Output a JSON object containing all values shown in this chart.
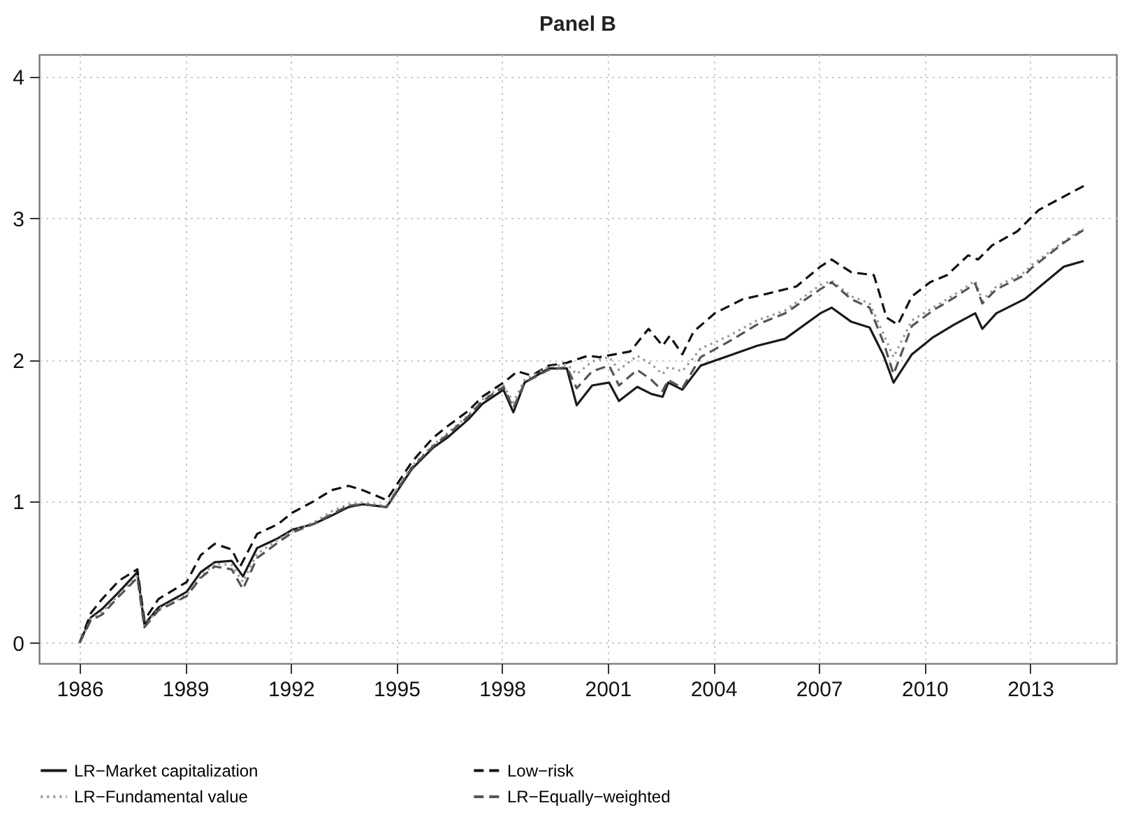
{
  "chart_data": {
    "type": "line",
    "title": "Panel B",
    "xlim": [
      1984.85,
      2015.45
    ],
    "xticks": [
      1986,
      1989,
      1992,
      1995,
      1998,
      2001,
      2004,
      2007,
      2010,
      2013
    ],
    "ylim": [
      -0.145,
      4.16
    ],
    "yticks": [
      0,
      1,
      2,
      3,
      4
    ],
    "grid": true,
    "legend": "bottom",
    "marker": "none",
    "x": [
      1986.0,
      1986.32,
      1986.64,
      1987.12,
      1987.64,
      1987.84,
      1988.24,
      1989.04,
      1989.44,
      1989.84,
      1990.32,
      1990.64,
      1991.04,
      1991.64,
      1992.04,
      1992.64,
      1993.16,
      1993.64,
      1994.04,
      1994.72,
      1995.04,
      1995.44,
      1996.04,
      1996.44,
      1997.04,
      1997.44,
      1998.04,
      1998.32,
      1998.64,
      1999.32,
      1999.84,
      2000.12,
      2000.56,
      2001.04,
      2001.32,
      2001.84,
      2002.24,
      2002.56,
      2002.72,
      2003.12,
      2003.64,
      2004.44,
      2005.24,
      2006.04,
      2007.04,
      2007.36,
      2007.92,
      2008.44,
      2008.84,
      2009.12,
      2009.64,
      2010.24,
      2010.84,
      2011.44,
      2011.64,
      2012.04,
      2012.84,
      2013.04,
      2013.96,
      2014.52
    ],
    "series": [
      {
        "name": "LR−Market capitalization",
        "color": "#1a1a1a",
        "line_style": "solid",
        "values": [
          0,
          0.18,
          0.24,
          0.36,
          0.5,
          0.13,
          0.25,
          0.36,
          0.5,
          0.57,
          0.58,
          0.47,
          0.67,
          0.74,
          0.8,
          0.84,
          0.9,
          0.96,
          0.98,
          0.96,
          1.08,
          1.23,
          1.38,
          1.45,
          1.58,
          1.69,
          1.79,
          1.63,
          1.84,
          1.94,
          1.94,
          1.68,
          1.82,
          1.84,
          1.71,
          1.81,
          1.76,
          1.74,
          1.84,
          1.79,
          1.96,
          2.03,
          2.1,
          2.15,
          2.33,
          2.37,
          2.27,
          2.23,
          2.03,
          1.84,
          2.04,
          2.16,
          2.25,
          2.33,
          2.22,
          2.33,
          2.43,
          2.47,
          2.66,
          2.7
        ]
      },
      {
        "name": "Low−risk",
        "color": "#111111",
        "line_style": "dashed",
        "x": [
          1986.0,
          1986.32,
          1986.64,
          1987.12,
          1987.64,
          1987.84,
          1988.24,
          1989.04,
          1989.44,
          1989.84,
          1990.32,
          1990.56,
          1991.04,
          1991.64,
          1992.04,
          1992.64,
          1993.16,
          1993.64,
          1994.04,
          1994.72,
          1995.04,
          1995.44,
          1996.04,
          1996.44,
          1997.04,
          1997.44,
          1998.04,
          1998.44,
          1998.84,
          1999.32,
          1999.84,
          2000.44,
          2000.76,
          2001.64,
          2002.16,
          2002.56,
          2002.76,
          2003.12,
          2003.44,
          2004.04,
          2004.84,
          2005.56,
          2006.36,
          2007.04,
          2007.36,
          2007.92,
          2008.56,
          2008.72,
          2008.92,
          2009.24,
          2009.64,
          2010.16,
          2010.64,
          2011.24,
          2011.52,
          2011.92,
          2012.64,
          2013.24,
          2013.84,
          2014.52
        ],
        "values": [
          0,
          0.21,
          0.31,
          0.44,
          0.52,
          0.16,
          0.31,
          0.43,
          0.62,
          0.7,
          0.66,
          0.54,
          0.77,
          0.84,
          0.92,
          1.0,
          1.08,
          1.11,
          1.08,
          1.01,
          1.13,
          1.28,
          1.45,
          1.53,
          1.64,
          1.74,
          1.84,
          1.92,
          1.89,
          1.96,
          1.98,
          2.03,
          2.02,
          2.06,
          2.22,
          2.1,
          2.17,
          2.04,
          2.2,
          2.33,
          2.43,
          2.47,
          2.52,
          2.66,
          2.71,
          2.62,
          2.6,
          2.47,
          2.3,
          2.25,
          2.45,
          2.55,
          2.6,
          2.74,
          2.71,
          2.81,
          2.91,
          3.06,
          3.14,
          3.23
        ]
      },
      {
        "name": "LR−Fundamental value",
        "color": "#999999",
        "line_style": "dotted",
        "values": [
          0,
          0.17,
          0.22,
          0.34,
          0.47,
          0.12,
          0.24,
          0.34,
          0.47,
          0.56,
          0.55,
          0.43,
          0.63,
          0.73,
          0.79,
          0.85,
          0.93,
          0.98,
          0.99,
          0.97,
          1.1,
          1.25,
          1.4,
          1.48,
          1.61,
          1.72,
          1.82,
          1.7,
          1.86,
          1.95,
          1.97,
          1.9,
          1.99,
          2.02,
          1.93,
          2.03,
          1.97,
          1.9,
          1.95,
          1.92,
          2.08,
          2.17,
          2.28,
          2.35,
          2.53,
          2.56,
          2.45,
          2.4,
          2.18,
          2.02,
          2.28,
          2.37,
          2.46,
          2.56,
          2.42,
          2.52,
          2.62,
          2.67,
          2.84,
          2.93
        ]
      },
      {
        "name": "LR−Equally−weighted",
        "color": "#555555",
        "line_style": "dashed",
        "values": [
          0,
          0.16,
          0.2,
          0.33,
          0.46,
          0.11,
          0.23,
          0.33,
          0.46,
          0.54,
          0.52,
          0.38,
          0.6,
          0.71,
          0.78,
          0.84,
          0.91,
          0.97,
          0.98,
          0.96,
          1.09,
          1.24,
          1.39,
          1.47,
          1.6,
          1.71,
          1.81,
          1.66,
          1.84,
          1.93,
          1.95,
          1.8,
          1.92,
          1.96,
          1.82,
          1.93,
          1.86,
          1.78,
          1.86,
          1.8,
          2.02,
          2.13,
          2.25,
          2.33,
          2.5,
          2.55,
          2.43,
          2.37,
          2.12,
          1.9,
          2.24,
          2.35,
          2.44,
          2.54,
          2.4,
          2.5,
          2.6,
          2.65,
          2.83,
          2.92
        ]
      }
    ]
  }
}
